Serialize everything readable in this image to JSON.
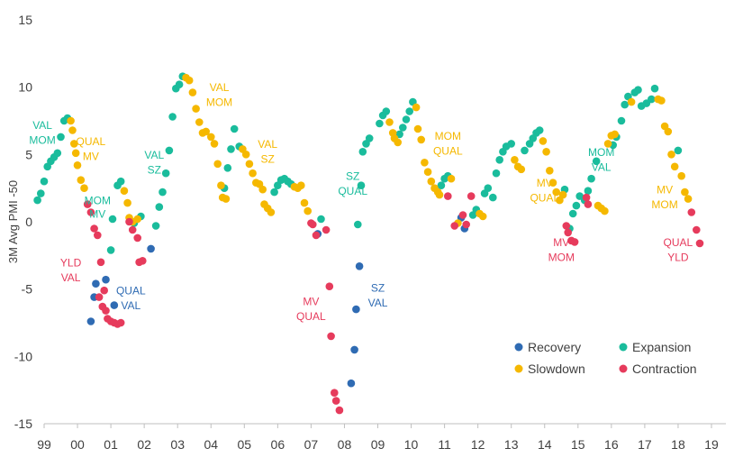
{
  "chart_data": {
    "type": "scatter",
    "title": "",
    "ylabel": "3M Avg PMI -50",
    "xlabel": "",
    "ylim": [
      -15,
      15
    ],
    "yticks": [
      "15",
      "10",
      "5",
      "0",
      "-5",
      "-10",
      "-15"
    ],
    "ytick_values": [
      15,
      10,
      5,
      0,
      -5,
      -10,
      -15
    ],
    "xticks": [
      "99",
      "00",
      "01",
      "02",
      "03",
      "04",
      "05",
      "06",
      "07",
      "08",
      "09",
      "10",
      "11",
      "12",
      "13",
      "14",
      "15",
      "16",
      "17",
      "18",
      "19"
    ],
    "grid": false,
    "legend_position": "bottom-right",
    "colors": {
      "Recovery": "#2F6BB3",
      "Expansion": "#1ABC9C",
      "Slowdown": "#F5B800",
      "Contraction": "#E63B5C",
      "axis": "#BFBFBF"
    },
    "series": [
      {
        "name": "Recovery",
        "points": [
          [
            1.4,
            -7.4
          ],
          [
            1.5,
            -5.6
          ],
          [
            1.55,
            -4.6
          ],
          [
            1.85,
            -4.3
          ],
          [
            2.1,
            -6.2
          ],
          [
            3.2,
            -2.0
          ],
          [
            8.2,
            -0.9
          ],
          [
            9.2,
            -12.0
          ],
          [
            9.3,
            -9.5
          ],
          [
            9.35,
            -6.5
          ],
          [
            9.45,
            -3.3
          ],
          [
            12.5,
            0.3
          ],
          [
            12.6,
            -0.5
          ]
        ]
      },
      {
        "name": "Expansion",
        "points": [
          [
            -0.2,
            1.6
          ],
          [
            -0.1,
            2.1
          ],
          [
            0.0,
            3.0
          ],
          [
            0.1,
            4.1
          ],
          [
            0.2,
            4.5
          ],
          [
            0.3,
            4.8
          ],
          [
            0.4,
            5.1
          ],
          [
            0.5,
            6.3
          ],
          [
            0.6,
            7.5
          ],
          [
            0.7,
            7.7
          ],
          [
            2.0,
            -2.1
          ],
          [
            2.05,
            0.2
          ],
          [
            2.2,
            2.7
          ],
          [
            2.3,
            3.0
          ],
          [
            2.7,
            -0.1
          ],
          [
            2.9,
            0.4
          ],
          [
            3.35,
            -0.3
          ],
          [
            3.45,
            1.1
          ],
          [
            3.55,
            2.2
          ],
          [
            3.65,
            3.6
          ],
          [
            3.75,
            5.3
          ],
          [
            3.85,
            7.8
          ],
          [
            3.95,
            9.9
          ],
          [
            4.05,
            10.2
          ],
          [
            4.15,
            10.8
          ],
          [
            5.4,
            2.5
          ],
          [
            5.5,
            4.0
          ],
          [
            5.6,
            5.4
          ],
          [
            5.7,
            6.9
          ],
          [
            5.85,
            5.6
          ],
          [
            6.9,
            2.2
          ],
          [
            7.0,
            2.7
          ],
          [
            7.1,
            3.1
          ],
          [
            7.2,
            3.2
          ],
          [
            7.3,
            3.0
          ],
          [
            7.4,
            2.8
          ],
          [
            8.3,
            0.2
          ],
          [
            9.4,
            -0.2
          ],
          [
            9.5,
            2.7
          ],
          [
            9.55,
            5.2
          ],
          [
            9.65,
            5.8
          ],
          [
            9.75,
            6.2
          ],
          [
            10.05,
            7.3
          ],
          [
            10.15,
            7.9
          ],
          [
            10.25,
            8.2
          ],
          [
            10.65,
            6.5
          ],
          [
            10.75,
            7.0
          ],
          [
            10.85,
            7.6
          ],
          [
            10.95,
            8.2
          ],
          [
            11.05,
            8.9
          ],
          [
            11.9,
            2.7
          ],
          [
            12.0,
            3.2
          ],
          [
            12.1,
            3.4
          ],
          [
            12.85,
            0.5
          ],
          [
            12.95,
            0.9
          ],
          [
            13.2,
            2.1
          ],
          [
            13.3,
            2.5
          ],
          [
            13.45,
            1.8
          ],
          [
            13.55,
            3.6
          ],
          [
            13.65,
            4.6
          ],
          [
            13.75,
            5.2
          ],
          [
            13.85,
            5.6
          ],
          [
            14.0,
            5.8
          ],
          [
            14.4,
            5.3
          ],
          [
            14.55,
            5.8
          ],
          [
            14.65,
            6.2
          ],
          [
            14.75,
            6.6
          ],
          [
            14.85,
            6.8
          ],
          [
            15.6,
            2.4
          ],
          [
            15.75,
            -0.5
          ],
          [
            15.85,
            0.6
          ],
          [
            15.95,
            1.2
          ],
          [
            16.05,
            1.9
          ],
          [
            16.2,
            1.6
          ],
          [
            16.3,
            2.3
          ],
          [
            16.4,
            3.2
          ],
          [
            16.55,
            4.5
          ],
          [
            17.05,
            5.7
          ],
          [
            17.15,
            6.3
          ],
          [
            17.3,
            7.5
          ],
          [
            17.4,
            8.7
          ],
          [
            17.5,
            9.3
          ],
          [
            17.7,
            9.6
          ],
          [
            17.8,
            9.8
          ],
          [
            17.9,
            8.6
          ],
          [
            18.05,
            8.8
          ],
          [
            18.2,
            9.1
          ],
          [
            18.3,
            9.9
          ],
          [
            19.0,
            5.3
          ]
        ]
      },
      {
        "name": "Slowdown",
        "points": [
          [
            0.8,
            7.5
          ],
          [
            0.85,
            6.8
          ],
          [
            0.9,
            5.8
          ],
          [
            0.95,
            5.1
          ],
          [
            1.0,
            4.2
          ],
          [
            1.1,
            3.1
          ],
          [
            1.2,
            2.5
          ],
          [
            2.4,
            2.3
          ],
          [
            2.5,
            1.4
          ],
          [
            2.55,
            0.3
          ],
          [
            2.65,
            0.0
          ],
          [
            2.8,
            0.2
          ],
          [
            4.25,
            10.7
          ],
          [
            4.35,
            10.5
          ],
          [
            4.45,
            9.6
          ],
          [
            4.55,
            8.4
          ],
          [
            4.65,
            7.4
          ],
          [
            4.75,
            6.6
          ],
          [
            4.85,
            6.7
          ],
          [
            5.0,
            6.3
          ],
          [
            5.1,
            5.8
          ],
          [
            5.2,
            4.3
          ],
          [
            5.3,
            2.7
          ],
          [
            5.35,
            1.8
          ],
          [
            5.45,
            1.7
          ],
          [
            5.95,
            5.4
          ],
          [
            6.05,
            5.0
          ],
          [
            6.15,
            4.3
          ],
          [
            6.25,
            3.6
          ],
          [
            6.35,
            2.9
          ],
          [
            6.45,
            2.8
          ],
          [
            6.55,
            2.4
          ],
          [
            6.6,
            1.3
          ],
          [
            6.7,
            1.0
          ],
          [
            6.8,
            0.7
          ],
          [
            7.5,
            2.6
          ],
          [
            7.6,
            2.5
          ],
          [
            7.7,
            2.7
          ],
          [
            7.8,
            1.4
          ],
          [
            7.9,
            0.8
          ],
          [
            10.35,
            7.4
          ],
          [
            10.45,
            6.6
          ],
          [
            10.5,
            6.2
          ],
          [
            10.6,
            5.9
          ],
          [
            11.15,
            8.5
          ],
          [
            11.2,
            6.9
          ],
          [
            11.3,
            6.1
          ],
          [
            11.4,
            4.4
          ],
          [
            11.5,
            3.7
          ],
          [
            11.6,
            3.0
          ],
          [
            11.7,
            2.5
          ],
          [
            11.8,
            2.2
          ],
          [
            11.85,
            2.0
          ],
          [
            12.2,
            3.2
          ],
          [
            12.4,
            -0.1
          ],
          [
            13.05,
            0.6
          ],
          [
            13.15,
            0.4
          ],
          [
            14.1,
            4.6
          ],
          [
            14.2,
            4.1
          ],
          [
            14.3,
            3.9
          ],
          [
            14.95,
            6.0
          ],
          [
            15.05,
            5.2
          ],
          [
            15.15,
            3.8
          ],
          [
            15.25,
            2.9
          ],
          [
            15.35,
            2.2
          ],
          [
            15.45,
            1.6
          ],
          [
            15.55,
            2.0
          ],
          [
            16.6,
            1.2
          ],
          [
            16.7,
            1.0
          ],
          [
            16.8,
            0.8
          ],
          [
            16.9,
            5.8
          ],
          [
            17.0,
            6.4
          ],
          [
            17.1,
            6.5
          ],
          [
            17.6,
            8.9
          ],
          [
            18.4,
            9.1
          ],
          [
            18.5,
            9.0
          ],
          [
            18.6,
            7.1
          ],
          [
            18.7,
            6.7
          ],
          [
            18.8,
            5.0
          ],
          [
            18.9,
            4.1
          ],
          [
            19.1,
            3.4
          ],
          [
            19.2,
            2.2
          ],
          [
            19.3,
            1.7
          ]
        ]
      },
      {
        "name": "Contraction",
        "points": [
          [
            1.3,
            1.3
          ],
          [
            1.4,
            0.7
          ],
          [
            1.5,
            -0.5
          ],
          [
            1.6,
            -1.0
          ],
          [
            1.7,
            -3.0
          ],
          [
            1.8,
            -5.1
          ],
          [
            1.9,
            -7.2
          ],
          [
            2.0,
            -7.4
          ],
          [
            2.1,
            -7.5
          ],
          [
            2.2,
            -7.6
          ],
          [
            2.3,
            -7.5
          ],
          [
            1.65,
            -5.6
          ],
          [
            1.75,
            -6.3
          ],
          [
            1.85,
            -6.6
          ],
          [
            2.55,
            0.0
          ],
          [
            2.65,
            -0.6
          ],
          [
            2.8,
            -1.2
          ],
          [
            2.85,
            -3.0
          ],
          [
            2.95,
            -2.9
          ],
          [
            8.0,
            -0.1
          ],
          [
            8.05,
            -0.2
          ],
          [
            8.15,
            -1.0
          ],
          [
            8.45,
            -0.6
          ],
          [
            8.55,
            -4.8
          ],
          [
            8.6,
            -8.5
          ],
          [
            8.7,
            -12.7
          ],
          [
            8.75,
            -13.3
          ],
          [
            8.85,
            -14.0
          ],
          [
            12.1,
            1.9
          ],
          [
            12.3,
            -0.3
          ],
          [
            12.55,
            0.5
          ],
          [
            12.65,
            -0.2
          ],
          [
            12.8,
            1.9
          ],
          [
            15.65,
            -0.3
          ],
          [
            15.7,
            -0.8
          ],
          [
            15.8,
            -1.4
          ],
          [
            15.9,
            -1.5
          ],
          [
            16.25,
            1.8
          ],
          [
            16.3,
            1.3
          ],
          [
            19.4,
            0.7
          ],
          [
            19.55,
            -0.6
          ],
          [
            19.65,
            -1.6
          ]
        ]
      }
    ],
    "annotations": [
      {
        "lines": [
          "VAL",
          "MOM"
        ],
        "x": -0.05,
        "y": 6.9,
        "color": "Expansion"
      },
      {
        "lines": [
          "QUAL",
          "MV"
        ],
        "x": 1.4,
        "y": 5.7,
        "color": "Slowdown"
      },
      {
        "lines": [
          "YLD",
          "VAL"
        ],
        "x": 0.8,
        "y": -3.3,
        "color": "Contraction"
      },
      {
        "lines": [
          "QUAL",
          "VAL"
        ],
        "x": 2.6,
        "y": -5.4,
        "color": "Recovery"
      },
      {
        "lines": [
          "MOM",
          "MV"
        ],
        "x": 1.6,
        "y": 1.3,
        "color": "Expansion",
        "small": true
      },
      {
        "lines": [
          "VAL",
          "SZ"
        ],
        "x": 3.3,
        "y": 4.7,
        "color": "Expansion"
      },
      {
        "lines": [
          "VAL",
          "MOM"
        ],
        "x": 5.25,
        "y": 9.7,
        "color": "Slowdown"
      },
      {
        "lines": [
          "VAL",
          "SZ"
        ],
        "x": 6.7,
        "y": 5.5,
        "color": "Slowdown"
      },
      {
        "lines": [
          "MV",
          "QUAL"
        ],
        "x": 8.0,
        "y": -6.2,
        "color": "Contraction"
      },
      {
        "lines": [
          "SZ",
          "QUAL"
        ],
        "x": 9.25,
        "y": 3.1,
        "color": "Expansion"
      },
      {
        "lines": [
          "SZ",
          "VAL"
        ],
        "x": 10.0,
        "y": -5.2,
        "color": "Recovery"
      },
      {
        "lines": [
          "MOM",
          "QUAL"
        ],
        "x": 12.1,
        "y": 6.1,
        "color": "Slowdown"
      },
      {
        "lines": [
          "MV",
          "QUAL"
        ],
        "x": 15.0,
        "y": 2.6,
        "color": "Slowdown"
      },
      {
        "lines": [
          "MOM",
          "VAL"
        ],
        "x": 16.7,
        "y": 4.9,
        "color": "Expansion"
      },
      {
        "lines": [
          "MV",
          "MOM"
        ],
        "x": 15.5,
        "y": -1.8,
        "color": "Contraction"
      },
      {
        "lines": [
          "MV",
          "MOM"
        ],
        "x": 18.6,
        "y": 2.1,
        "color": "Slowdown"
      },
      {
        "lines": [
          "QUAL",
          "YLD"
        ],
        "x": 19.0,
        "y": -1.8,
        "color": "Contraction"
      }
    ],
    "legend": [
      "Recovery",
      "Expansion",
      "Slowdown",
      "Contraction"
    ]
  }
}
